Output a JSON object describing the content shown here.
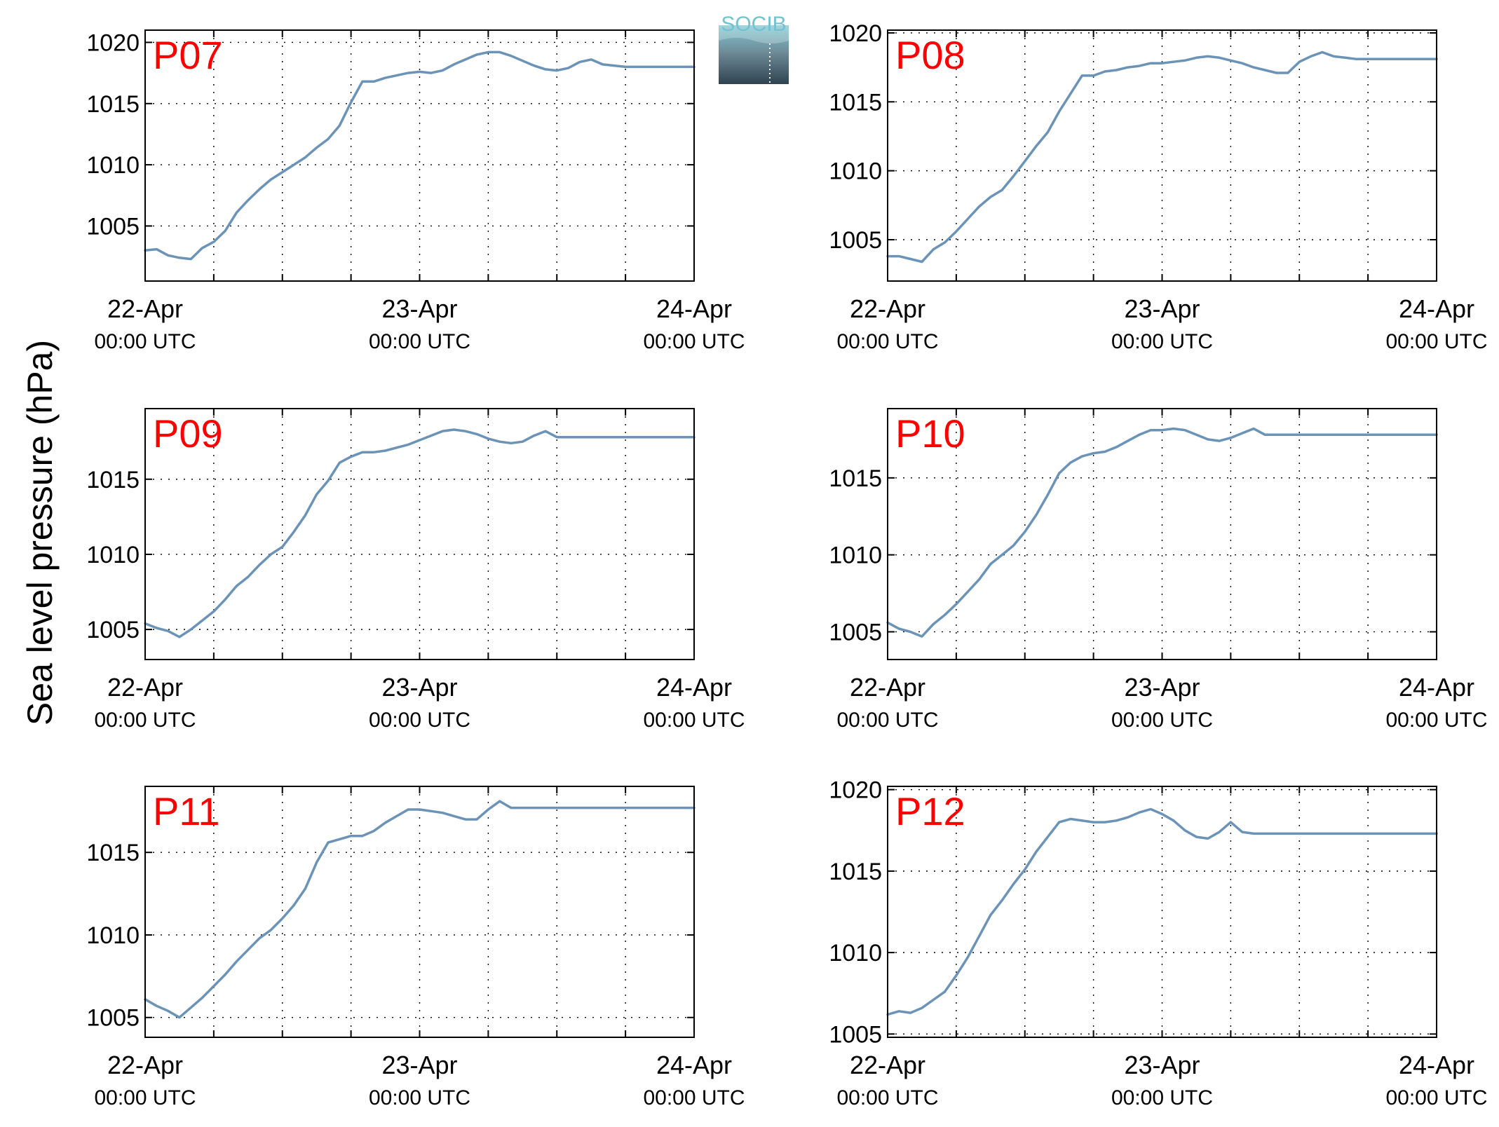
{
  "figure": {
    "ylabel": "Sea level pressure (hPa)",
    "logo_text": "SOCIB",
    "colors": {
      "line": "#6b93b7",
      "panel_label": "#ff0000",
      "axis": "#000000",
      "grid": "#000000"
    }
  },
  "chart_data": [
    {
      "type": "line",
      "title": "P07",
      "x_unit": "hours since 22-Apr 00:00 UTC",
      "xlim": [
        0,
        48
      ],
      "ylim": [
        1000.5,
        1021
      ],
      "yticks": [
        1005,
        1010,
        1015,
        1020
      ],
      "xticks": [
        0,
        24,
        48
      ],
      "xtick_labels": [
        [
          "22-Apr",
          "00:00 UTC"
        ],
        [
          "23-Apr",
          "00:00 UTC"
        ],
        [
          "24-Apr",
          "00:00 UTC"
        ]
      ],
      "minor_xticks": [
        6,
        12,
        18,
        30,
        36,
        42
      ],
      "grid": true,
      "series": [
        {
          "x": [
            0,
            1,
            2,
            3,
            4,
            5,
            6,
            7,
            8,
            9,
            10,
            11,
            12,
            13,
            14,
            15,
            16,
            17,
            18,
            19,
            20,
            21,
            22,
            23,
            24,
            25,
            26,
            27,
            28,
            29,
            30,
            31,
            32,
            33,
            34,
            35,
            36,
            37,
            38,
            39,
            40,
            41,
            42,
            43,
            44,
            45,
            46,
            47,
            48
          ],
          "y": [
            1003.0,
            1003.1,
            1002.6,
            1002.4,
            1002.3,
            1003.2,
            1003.7,
            1004.6,
            1006.1,
            1007.1,
            1008.0,
            1008.8,
            1009.4,
            1010.0,
            1010.6,
            1011.4,
            1012.1,
            1013.2,
            1015.1,
            1016.8,
            1016.8,
            1017.1,
            1017.3,
            1017.5,
            1017.6,
            1017.5,
            1017.7,
            1018.2,
            1018.6,
            1019.0,
            1019.2,
            1019.2,
            1018.9,
            1018.5,
            1018.1,
            1017.8,
            1017.7,
            1017.9,
            1018.4,
            1018.6,
            1018.2,
            1018.1,
            1018.0,
            1018.0,
            1018.0,
            1018.0,
            1018.0,
            1018.0,
            1018.0
          ]
        }
      ]
    },
    {
      "type": "line",
      "title": "P08",
      "x_unit": "hours since 22-Apr 00:00 UTC",
      "xlim": [
        0,
        48
      ],
      "ylim": [
        1002,
        1020.2
      ],
      "yticks": [
        1005,
        1010,
        1015,
        1020
      ],
      "xticks": [
        0,
        24,
        48
      ],
      "xtick_labels": [
        [
          "22-Apr",
          "00:00 UTC"
        ],
        [
          "23-Apr",
          "00:00 UTC"
        ],
        [
          "24-Apr",
          "00:00 UTC"
        ]
      ],
      "minor_xticks": [
        6,
        12,
        18,
        30,
        36,
        42
      ],
      "grid": true,
      "series": [
        {
          "x": [
            0,
            1,
            2,
            3,
            4,
            5,
            6,
            7,
            8,
            9,
            10,
            11,
            12,
            13,
            14,
            15,
            16,
            17,
            18,
            19,
            20,
            21,
            22,
            23,
            24,
            25,
            26,
            27,
            28,
            29,
            30,
            31,
            32,
            33,
            34,
            35,
            36,
            37,
            38,
            39,
            40,
            41,
            42,
            43,
            44,
            45,
            46,
            47,
            48
          ],
          "y": [
            1003.8,
            1003.8,
            1003.6,
            1003.4,
            1004.3,
            1004.8,
            1005.6,
            1006.5,
            1007.4,
            1008.1,
            1008.6,
            1009.6,
            1010.7,
            1011.8,
            1012.8,
            1014.3,
            1015.6,
            1016.9,
            1016.9,
            1017.2,
            1017.3,
            1017.5,
            1017.6,
            1017.8,
            1017.8,
            1017.9,
            1018.0,
            1018.2,
            1018.3,
            1018.2,
            1018.0,
            1017.8,
            1017.5,
            1017.3,
            1017.1,
            1017.1,
            1017.9,
            1018.3,
            1018.6,
            1018.3,
            1018.2,
            1018.1,
            1018.1,
            1018.1,
            1018.1,
            1018.1,
            1018.1,
            1018.1,
            1018.1
          ]
        }
      ]
    },
    {
      "type": "line",
      "title": "P09",
      "x_unit": "hours since 22-Apr 00:00 UTC",
      "xlim": [
        0,
        48
      ],
      "ylim": [
        1003,
        1019.7
      ],
      "yticks": [
        1005,
        1010,
        1015
      ],
      "xticks": [
        0,
        24,
        48
      ],
      "xtick_labels": [
        [
          "22-Apr",
          "00:00 UTC"
        ],
        [
          "23-Apr",
          "00:00 UTC"
        ],
        [
          "24-Apr",
          "00:00 UTC"
        ]
      ],
      "minor_xticks": [
        6,
        12,
        18,
        30,
        36,
        42
      ],
      "grid": true,
      "series": [
        {
          "x": [
            0,
            1,
            2,
            3,
            4,
            5,
            6,
            7,
            8,
            9,
            10,
            11,
            12,
            13,
            14,
            15,
            16,
            17,
            18,
            19,
            20,
            21,
            22,
            23,
            24,
            25,
            26,
            27,
            28,
            29,
            30,
            31,
            32,
            33,
            34,
            35,
            36,
            37,
            38,
            39,
            40,
            41,
            42,
            43,
            44,
            45,
            46,
            47,
            48
          ],
          "y": [
            1005.4,
            1005.1,
            1004.9,
            1004.5,
            1005.0,
            1005.6,
            1006.2,
            1007.0,
            1007.9,
            1008.5,
            1009.3,
            1010.0,
            1010.5,
            1011.5,
            1012.6,
            1014.0,
            1014.9,
            1016.1,
            1016.5,
            1016.8,
            1016.8,
            1016.9,
            1017.1,
            1017.3,
            1017.6,
            1017.9,
            1018.2,
            1018.3,
            1018.2,
            1018.0,
            1017.7,
            1017.5,
            1017.4,
            1017.5,
            1017.9,
            1018.2,
            1017.8,
            1017.8,
            1017.8,
            1017.8,
            1017.8,
            1017.8,
            1017.8,
            1017.8,
            1017.8,
            1017.8,
            1017.8,
            1017.8,
            1017.8
          ]
        }
      ]
    },
    {
      "type": "line",
      "title": "P10",
      "x_unit": "hours since 22-Apr 00:00 UTC",
      "xlim": [
        0,
        48
      ],
      "ylim": [
        1003.2,
        1019.5
      ],
      "yticks": [
        1005,
        1010,
        1015
      ],
      "xticks": [
        0,
        24,
        48
      ],
      "xtick_labels": [
        [
          "22-Apr",
          "00:00 UTC"
        ],
        [
          "23-Apr",
          "00:00 UTC"
        ],
        [
          "24-Apr",
          "00:00 UTC"
        ]
      ],
      "minor_xticks": [
        6,
        12,
        18,
        30,
        36,
        42
      ],
      "grid": true,
      "series": [
        {
          "x": [
            0,
            1,
            2,
            3,
            4,
            5,
            6,
            7,
            8,
            9,
            10,
            11,
            12,
            13,
            14,
            15,
            16,
            17,
            18,
            19,
            20,
            21,
            22,
            23,
            24,
            25,
            26,
            27,
            28,
            29,
            30,
            31,
            32,
            33,
            34,
            35,
            36,
            37,
            38,
            39,
            40,
            41,
            42,
            43,
            44,
            45,
            46,
            47,
            48
          ],
          "y": [
            1005.6,
            1005.2,
            1005.0,
            1004.7,
            1005.5,
            1006.1,
            1006.8,
            1007.6,
            1008.4,
            1009.4,
            1010.0,
            1010.6,
            1011.5,
            1012.6,
            1013.9,
            1015.3,
            1016.0,
            1016.4,
            1016.6,
            1016.7,
            1017.0,
            1017.4,
            1017.8,
            1018.1,
            1018.1,
            1018.2,
            1018.1,
            1017.8,
            1017.5,
            1017.4,
            1017.6,
            1017.9,
            1018.2,
            1017.8,
            1017.8,
            1017.8,
            1017.8,
            1017.8,
            1017.8,
            1017.8,
            1017.8,
            1017.8,
            1017.8,
            1017.8,
            1017.8,
            1017.8,
            1017.8,
            1017.8,
            1017.8
          ]
        }
      ]
    },
    {
      "type": "line",
      "title": "P11",
      "x_unit": "hours since 22-Apr 00:00 UTC",
      "xlim": [
        0,
        48
      ],
      "ylim": [
        1003.8,
        1019
      ],
      "yticks": [
        1005,
        1010,
        1015
      ],
      "xticks": [
        0,
        24,
        48
      ],
      "xtick_labels": [
        [
          "22-Apr",
          "00:00 UTC"
        ],
        [
          "23-Apr",
          "00:00 UTC"
        ],
        [
          "24-Apr",
          "00:00 UTC"
        ]
      ],
      "minor_xticks": [
        6,
        12,
        18,
        30,
        36,
        42
      ],
      "grid": true,
      "series": [
        {
          "x": [
            0,
            1,
            2,
            3,
            4,
            5,
            6,
            7,
            8,
            9,
            10,
            11,
            12,
            13,
            14,
            15,
            16,
            17,
            18,
            19,
            20,
            21,
            22,
            23,
            24,
            25,
            26,
            27,
            28,
            29,
            30,
            31,
            32,
            33,
            34,
            35,
            36,
            37,
            38,
            39,
            40,
            41,
            42,
            43,
            44,
            45,
            46,
            47,
            48
          ],
          "y": [
            1006.1,
            1005.7,
            1005.4,
            1005.0,
            1005.6,
            1006.2,
            1006.9,
            1007.6,
            1008.4,
            1009.1,
            1009.8,
            1010.3,
            1011.0,
            1011.8,
            1012.8,
            1014.4,
            1015.6,
            1015.8,
            1016.0,
            1016.0,
            1016.3,
            1016.8,
            1017.2,
            1017.6,
            1017.6,
            1017.5,
            1017.4,
            1017.2,
            1017.0,
            1017.0,
            1017.6,
            1018.1,
            1017.7,
            1017.7,
            1017.7,
            1017.7,
            1017.7,
            1017.7,
            1017.7,
            1017.7,
            1017.7,
            1017.7,
            1017.7,
            1017.7,
            1017.7,
            1017.7,
            1017.7,
            1017.7,
            1017.7
          ]
        }
      ]
    },
    {
      "type": "line",
      "title": "P12",
      "x_unit": "hours since 22-Apr 00:00 UTC",
      "xlim": [
        0,
        48
      ],
      "ylim": [
        1004.8,
        1020.2
      ],
      "yticks": [
        1005,
        1010,
        1015,
        1020
      ],
      "xticks": [
        0,
        24,
        48
      ],
      "xtick_labels": [
        [
          "22-Apr",
          "00:00 UTC"
        ],
        [
          "23-Apr",
          "00:00 UTC"
        ],
        [
          "24-Apr",
          "00:00 UTC"
        ]
      ],
      "minor_xticks": [
        6,
        12,
        18,
        30,
        36,
        42
      ],
      "grid": true,
      "series": [
        {
          "x": [
            0,
            1,
            2,
            3,
            4,
            5,
            6,
            7,
            8,
            9,
            10,
            11,
            12,
            13,
            14,
            15,
            16,
            17,
            18,
            19,
            20,
            21,
            22,
            23,
            24,
            25,
            26,
            27,
            28,
            29,
            30,
            31,
            32,
            33,
            34,
            35,
            36,
            37,
            38,
            39,
            40,
            41,
            42,
            43,
            44,
            45,
            46,
            47,
            48
          ],
          "y": [
            1006.2,
            1006.4,
            1006.3,
            1006.6,
            1007.1,
            1007.6,
            1008.6,
            1009.7,
            1011.0,
            1012.3,
            1013.2,
            1014.2,
            1015.1,
            1016.2,
            1017.1,
            1018.0,
            1018.2,
            1018.1,
            1018.0,
            1018.0,
            1018.1,
            1018.3,
            1018.6,
            1018.8,
            1018.5,
            1018.1,
            1017.5,
            1017.1,
            1017.0,
            1017.4,
            1018.0,
            1017.4,
            1017.3,
            1017.3,
            1017.3,
            1017.3,
            1017.3,
            1017.3,
            1017.3,
            1017.3,
            1017.3,
            1017.3,
            1017.3,
            1017.3,
            1017.3,
            1017.3,
            1017.3,
            1017.3,
            1017.3
          ]
        }
      ]
    }
  ]
}
